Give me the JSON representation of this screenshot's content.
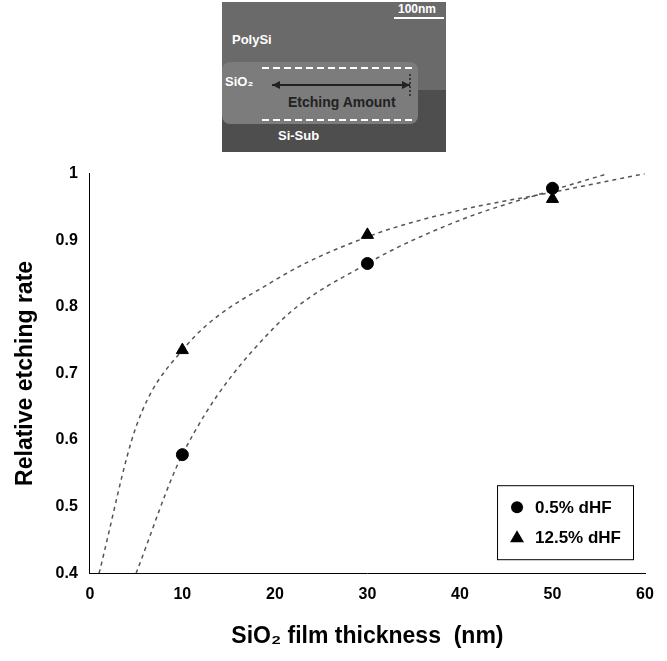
{
  "chart_data": {
    "type": "scatter",
    "x_label": "SiO₂ film thickness  (nm)",
    "y_label": "Relative etching rate",
    "xlim": [
      0,
      60
    ],
    "xticks": [
      0,
      10,
      20,
      30,
      40,
      50,
      60
    ],
    "ylim": [
      0.4,
      1
    ],
    "yticks": [
      0.4,
      0.5,
      0.6,
      0.7,
      0.8,
      0.9,
      1
    ],
    "grid": false,
    "legend": "lower right",
    "series": [
      {
        "name": "0.5% dHF",
        "color": "#000000",
        "marker": "circle",
        "x": [
          10,
          30,
          50
        ],
        "values": [
          0.578,
          0.865,
          0.978
        ]
      },
      {
        "name": "12.5% dHF",
        "color": "#000000",
        "marker": "triangle",
        "x": [
          10,
          30,
          50
        ],
        "values": [
          0.735,
          0.908,
          0.962
        ]
      },
      {
        "type": "line",
        "color": "#555555",
        "line_style": "dashed",
        "marker": "none",
        "x": [
          5,
          10,
          20,
          30,
          40,
          50,
          56
        ],
        "values": [
          0.4,
          0.578,
          0.77,
          0.865,
          0.93,
          0.975,
          1.0
        ]
      },
      {
        "type": "line",
        "color": "#555555",
        "line_style": "dashed",
        "marker": "none",
        "x": [
          1,
          5,
          10,
          20,
          30,
          40,
          50,
          60
        ],
        "values": [
          0.4,
          0.62,
          0.735,
          0.84,
          0.905,
          0.945,
          0.972,
          1.0
        ]
      }
    ]
  },
  "micrograph": {
    "scale_bar": "100nm",
    "labels": [
      "PolySi",
      "SiO₂",
      "Etching Amount",
      "Si-Sub"
    ]
  }
}
